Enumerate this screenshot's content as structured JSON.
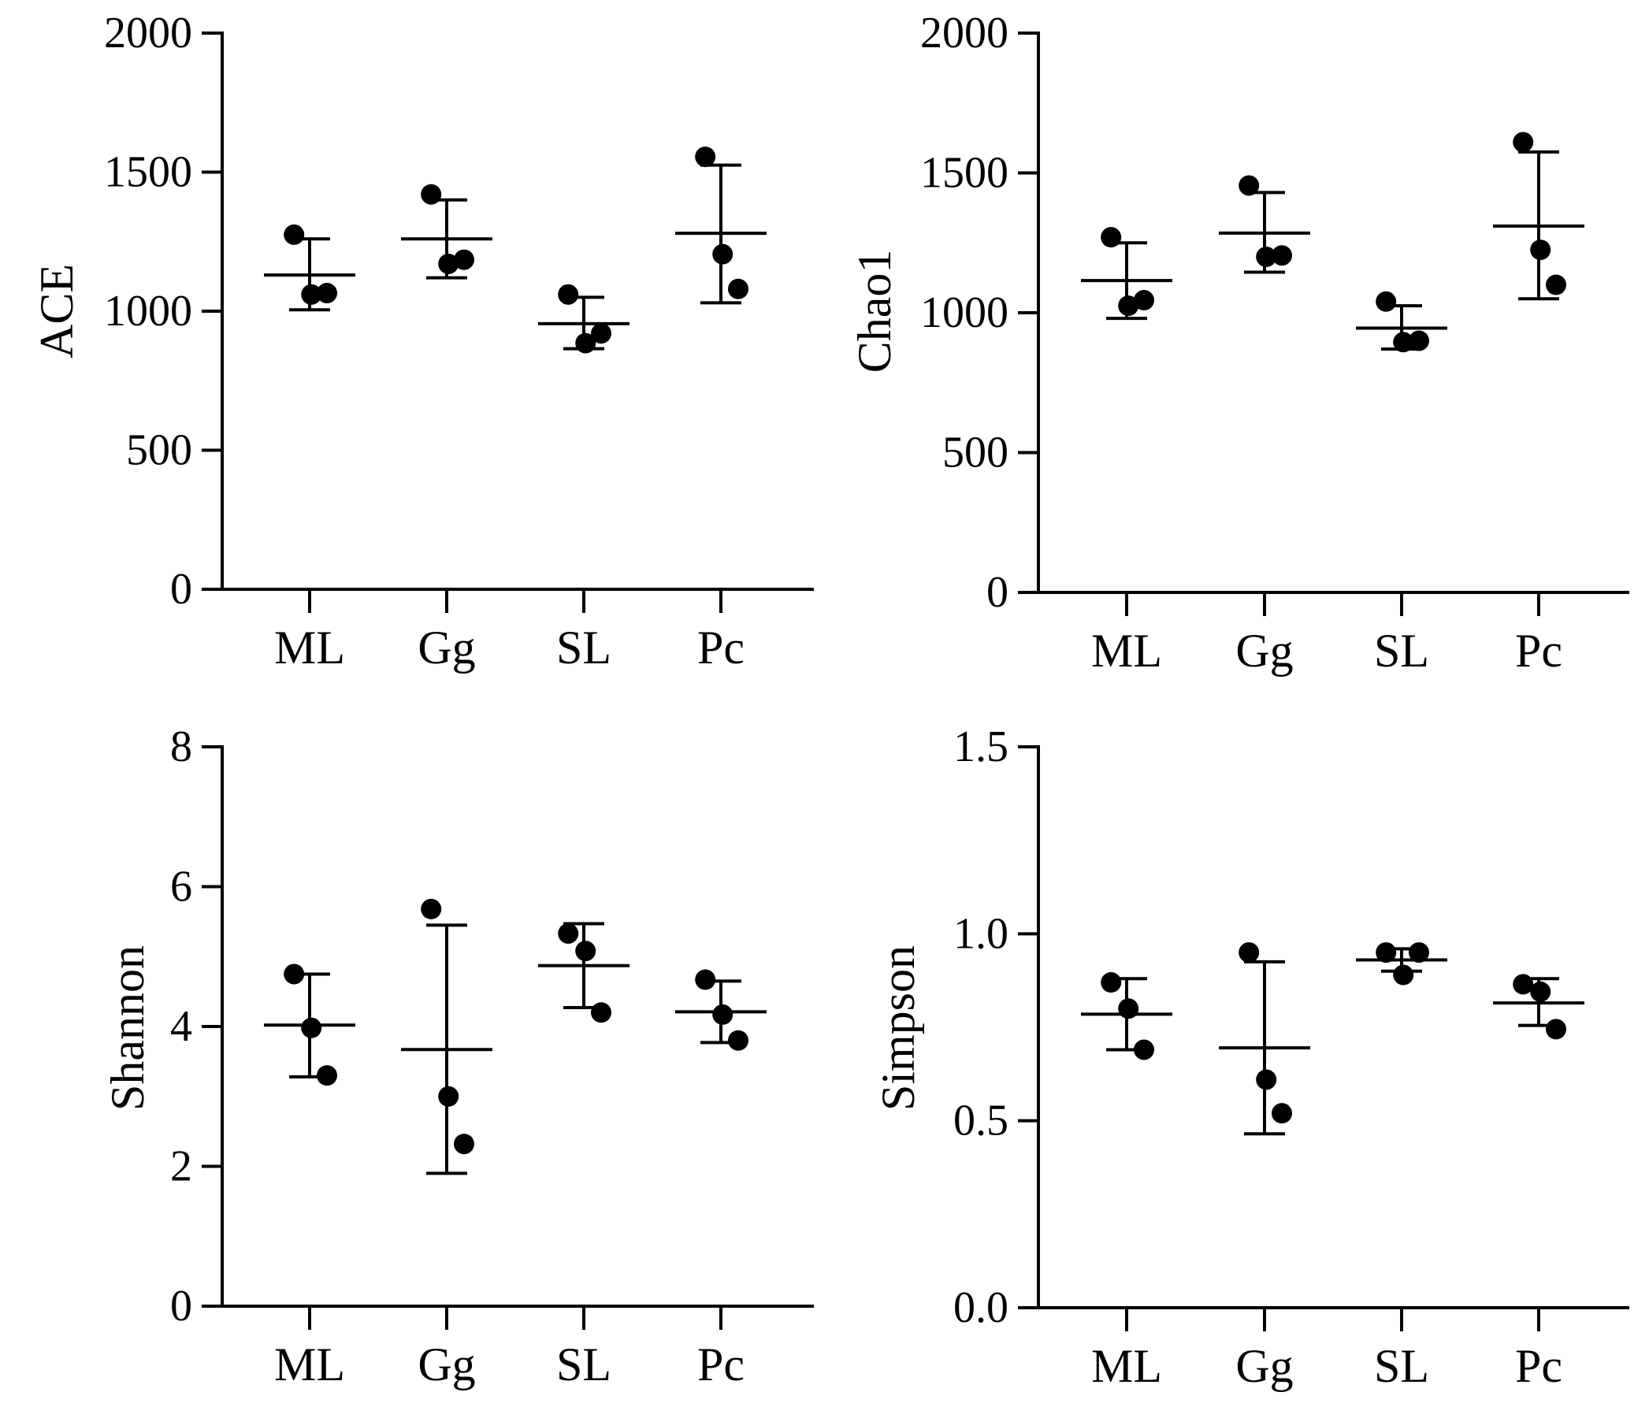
{
  "chart_data": [
    {
      "type": "scatter",
      "subtype": "dot-plot-with-mean-and-sd",
      "ylabel": "ACE",
      "xlabel": "",
      "categories": [
        "ML",
        "Gg",
        "SL",
        "Pc"
      ],
      "ylim": [
        0,
        2000
      ],
      "yticks": [
        0,
        500,
        1000,
        1500,
        2000
      ],
      "ytick_labels": [
        "0",
        "500",
        "1000",
        "1500",
        "2000"
      ],
      "groups": [
        {
          "name": "ML",
          "points": [
            1275,
            1060,
            1065
          ],
          "mean": 1130,
          "sd_low": 1005,
          "sd_high": 1260
        },
        {
          "name": "Gg",
          "points": [
            1420,
            1170,
            1185
          ],
          "mean": 1260,
          "sd_low": 1120,
          "sd_high": 1400
        },
        {
          "name": "SL",
          "points": [
            1060,
            885,
            920
          ],
          "mean": 955,
          "sd_low": 865,
          "sd_high": 1050
        },
        {
          "name": "Pc",
          "points": [
            1555,
            1205,
            1080
          ],
          "mean": 1280,
          "sd_low": 1030,
          "sd_high": 1525
        }
      ]
    },
    {
      "type": "scatter",
      "subtype": "dot-plot-with-mean-and-sd",
      "ylabel": "Chao1",
      "xlabel": "",
      "categories": [
        "ML",
        "Gg",
        "SL",
        "Pc"
      ],
      "ylim": [
        0,
        2000
      ],
      "yticks": [
        0,
        500,
        1000,
        1500,
        2000
      ],
      "ytick_labels": [
        "0",
        "500",
        "1000",
        "1500",
        "2000"
      ],
      "groups": [
        {
          "name": "ML",
          "points": [
            1270,
            1025,
            1045
          ],
          "mean": 1115,
          "sd_low": 980,
          "sd_high": 1250
        },
        {
          "name": "Gg",
          "points": [
            1455,
            1200,
            1205
          ],
          "mean": 1285,
          "sd_low": 1145,
          "sd_high": 1430
        },
        {
          "name": "SL",
          "points": [
            1040,
            895,
            900
          ],
          "mean": 945,
          "sd_low": 870,
          "sd_high": 1025
        },
        {
          "name": "Pc",
          "points": [
            1610,
            1225,
            1100
          ],
          "mean": 1310,
          "sd_low": 1050,
          "sd_high": 1575
        }
      ]
    },
    {
      "type": "scatter",
      "subtype": "dot-plot-with-mean-and-sd",
      "ylabel": "Shannon",
      "xlabel": "",
      "categories": [
        "ML",
        "Gg",
        "SL",
        "Pc"
      ],
      "ylim": [
        0,
        8
      ],
      "yticks": [
        0,
        2,
        4,
        6,
        8
      ],
      "ytick_labels": [
        "0",
        "2",
        "4",
        "6",
        "8"
      ],
      "groups": [
        {
          "name": "ML",
          "points": [
            4.75,
            3.98,
            3.3
          ],
          "mean": 4.02,
          "sd_low": 3.28,
          "sd_high": 4.75
        },
        {
          "name": "Gg",
          "points": [
            5.68,
            3.0,
            2.32
          ],
          "mean": 3.67,
          "sd_low": 1.9,
          "sd_high": 5.45
        },
        {
          "name": "SL",
          "points": [
            5.33,
            5.08,
            4.2
          ],
          "mean": 4.87,
          "sd_low": 4.27,
          "sd_high": 5.47
        },
        {
          "name": "Pc",
          "points": [
            4.67,
            4.17,
            3.8
          ],
          "mean": 4.21,
          "sd_low": 3.77,
          "sd_high": 4.65
        }
      ]
    },
    {
      "type": "scatter",
      "subtype": "dot-plot-with-mean-and-sd",
      "ylabel": "Simpson",
      "xlabel": "",
      "categories": [
        "ML",
        "Gg",
        "SL",
        "Pc"
      ],
      "ylim": [
        0,
        1.5
      ],
      "yticks": [
        0,
        0.5,
        1.0,
        1.5
      ],
      "ytick_labels": [
        "0.0",
        "0.5",
        "1.0",
        "1.5"
      ],
      "groups": [
        {
          "name": "ML",
          "points": [
            0.87,
            0.8,
            0.69
          ],
          "mean": 0.785,
          "sd_low": 0.69,
          "sd_high": 0.88
        },
        {
          "name": "Gg",
          "points": [
            0.95,
            0.61,
            0.52
          ],
          "mean": 0.695,
          "sd_low": 0.465,
          "sd_high": 0.925
        },
        {
          "name": "SL",
          "points": [
            0.95,
            0.89,
            0.95
          ],
          "mean": 0.93,
          "sd_low": 0.9,
          "sd_high": 0.96
        },
        {
          "name": "Pc",
          "points": [
            0.865,
            0.845,
            0.745
          ],
          "mean": 0.815,
          "sd_low": 0.755,
          "sd_high": 0.88
        }
      ]
    }
  ]
}
